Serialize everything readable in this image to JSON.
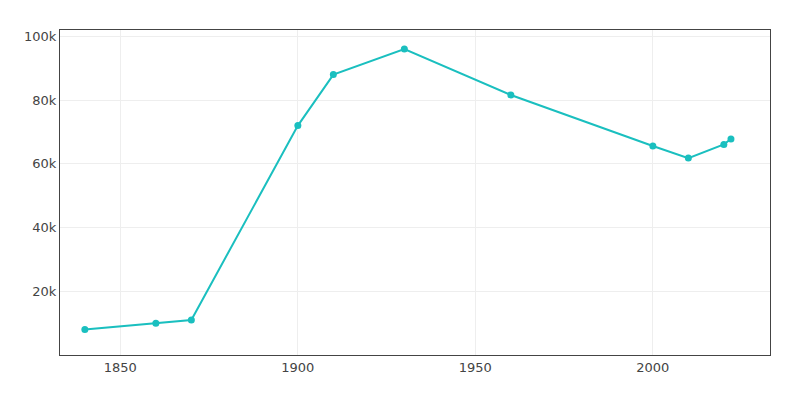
{
  "chart_data": {
    "type": "line",
    "x": [
      1840,
      1860,
      1870,
      1900,
      1910,
      1930,
      1960,
      2000,
      2010,
      2020,
      2022
    ],
    "values": [
      8000,
      10000,
      11000,
      72000,
      88000,
      96000,
      81600,
      65600,
      61800,
      66100,
      67800
    ],
    "color": "#1abfbf",
    "marker": "circle",
    "xlim": [
      1833,
      2033
    ],
    "xticks": [
      1850,
      1900,
      1950,
      2000
    ],
    "ylim": [
      0,
      102000
    ],
    "yticks": [
      {
        "value": 0,
        "label": ""
      },
      {
        "value": 20000,
        "label": "20k"
      },
      {
        "value": 40000,
        "label": "40k"
      },
      {
        "value": 60000,
        "label": "60k"
      },
      {
        "value": 80000,
        "label": "80k"
      },
      {
        "value": 100000,
        "label": "100k"
      }
    ],
    "grid": true
  }
}
